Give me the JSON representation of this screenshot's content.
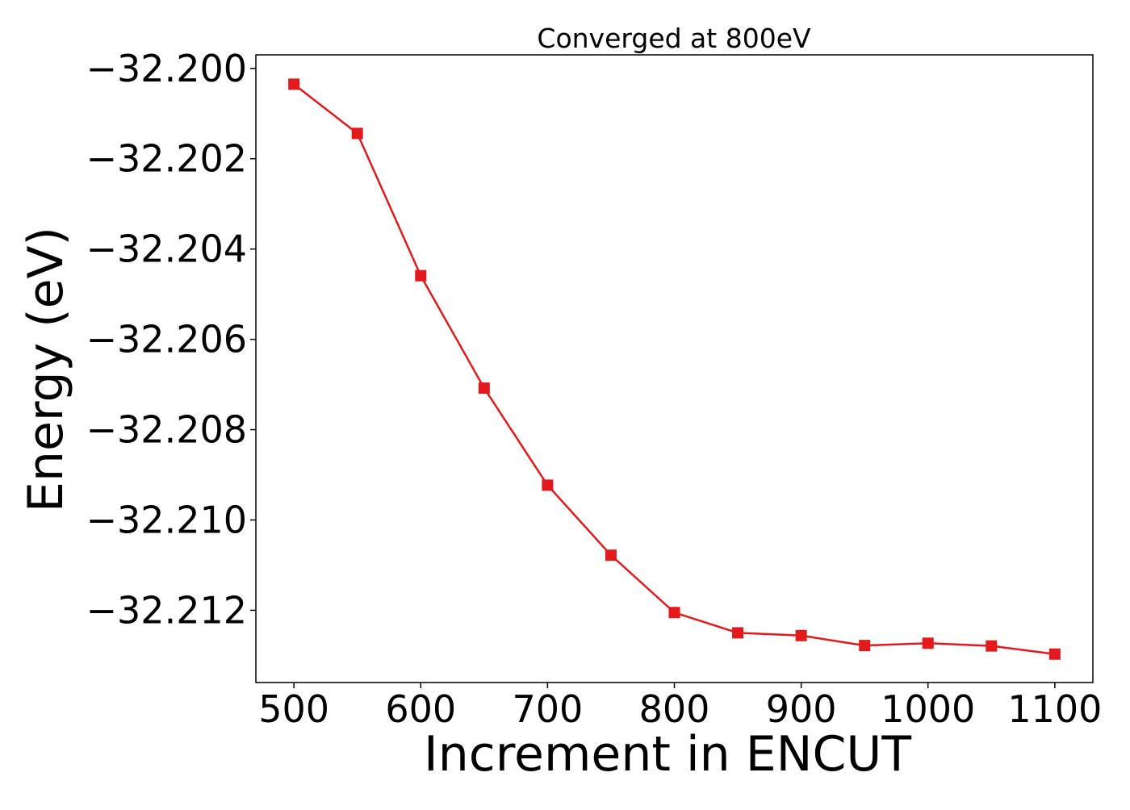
{
  "chart_data": {
    "type": "line",
    "title": "Converged at 800eV",
    "xlabel": "Increment in ENCUT",
    "ylabel": "Energy (eV)",
    "x": [
      500,
      550,
      600,
      650,
      700,
      750,
      800,
      850,
      900,
      950,
      1000,
      1050,
      1100
    ],
    "series": [
      {
        "values": [
          -32.20035,
          -32.20144,
          -32.20459,
          -32.20708,
          -32.20923,
          -32.21078,
          -32.21205,
          -32.2125,
          -32.21256,
          -32.21278,
          -32.21273,
          -32.21279,
          -32.21297
        ],
        "color": "#e31a1c",
        "marker": "square"
      }
    ],
    "xlim": [
      470,
      1130
    ],
    "ylim": [
      -32.2136,
      -32.1997
    ],
    "xticks": [
      500,
      600,
      700,
      800,
      900,
      1000,
      1100
    ],
    "xtick_labels": [
      "500",
      "600",
      "700",
      "800",
      "900",
      "1000",
      "1100"
    ],
    "yticks": [
      -32.2,
      -32.202,
      -32.204,
      -32.206,
      -32.208,
      -32.21,
      -32.212
    ],
    "ytick_labels": [
      "−32.200",
      "−32.202",
      "−32.204",
      "−32.206",
      "−32.208",
      "−32.210",
      "−32.212"
    ],
    "grid": false,
    "legend": false
  }
}
